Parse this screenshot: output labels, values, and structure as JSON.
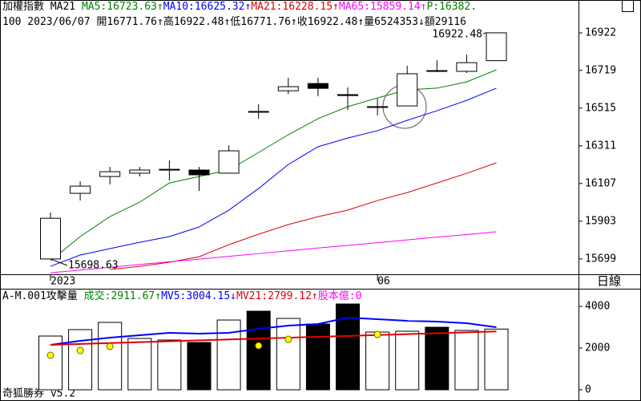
{
  "chart_data": [
    {
      "type": "candlestick",
      "header": [
        [
          {
            "text": "加權指數 MA21 ",
            "color": "#000000"
          },
          {
            "text": "MA5:16723.63↑",
            "color": "#008000"
          },
          {
            "text": "MA10:16625.32↑",
            "color": "#0000ff"
          },
          {
            "text": "MA21:16228.15↑",
            "color": "#e00000"
          },
          {
            "text": "MA65:15859.14↑",
            "color": "#ff00ff"
          },
          {
            "text": "P:16382.",
            "color": "#008000"
          }
        ],
        [
          {
            "text": "100 2023/06/07 開16771.76↑高16922.48↑低16771.76↑收16922.48↑量6524353↓額29116",
            "color": "#000000"
          }
        ]
      ],
      "categories": [
        "2023",
        null,
        null,
        null,
        null,
        null,
        null,
        null,
        null,
        null,
        null,
        "06",
        null,
        null,
        null,
        null
      ],
      "open": [
        15699,
        16054,
        16145,
        16163,
        16184,
        16180,
        16163,
        16497,
        16609,
        16648,
        16588,
        16523,
        16527,
        16718,
        16714,
        16771.76
      ],
      "high": [
        15950,
        16119,
        16197,
        16197,
        16232,
        16197,
        16314,
        16536,
        16679,
        16679,
        16627,
        16566,
        16744,
        16774,
        16805,
        16922.48
      ],
      "low": [
        15698.63,
        16015,
        16102,
        16145,
        16123,
        16067,
        16163,
        16458,
        16592,
        16579,
        16505,
        16475,
        16527,
        16709,
        16705,
        16771.76
      ],
      "close": [
        15919,
        16093,
        16171,
        16180,
        16184,
        16154,
        16284,
        16497,
        16631,
        16622,
        16583,
        16523,
        16701,
        16718,
        16761,
        16922.48
      ],
      "up_color": "#ffffff",
      "down_color": "#000000",
      "lines": [
        {
          "color": "#008000",
          "values": [
            15689,
            15820,
            15928,
            16006,
            16110,
            16145,
            16180,
            16275,
            16371,
            16458,
            16523,
            16570,
            16614,
            16623,
            16657,
            16722
          ]
        },
        {
          "color": "#0000ff",
          "values": [
            15659,
            15720,
            15755,
            15789,
            15820,
            15872,
            15963,
            16080,
            16210,
            16306,
            16353,
            16393,
            16449,
            16501,
            16557,
            16623
          ]
        },
        {
          "color": "#e00000",
          "values": [
            null,
            null,
            15642,
            15659,
            15681,
            15711,
            15776,
            15833,
            15885,
            15928,
            15963,
            16015,
            16058,
            16110,
            16162,
            16219
          ]
        },
        {
          "color": "#ff00ff",
          "values": [
            15624,
            15639,
            15654,
            15669,
            15684,
            15698,
            15713,
            15728,
            15743,
            15758,
            15772,
            15787,
            15802,
            15817,
            15831,
            15846
          ]
        }
      ],
      "annotations": [
        "16922.48",
        "15698.63"
      ],
      "ylim": [
        15616,
        17100
      ],
      "yticks": [
        16922,
        16719,
        16515,
        16311,
        16107,
        15903,
        15699
      ],
      "period_label": "日線"
    },
    {
      "type": "bar",
      "header": [
        [
          {
            "text": "A-M.001攻擊量 ",
            "color": "#000000"
          },
          {
            "text": "成交:2911.67↑",
            "color": "#008000"
          },
          {
            "text": "MV5:3004.15↓",
            "color": "#0000ff"
          },
          {
            "text": "MV21:2799.12↑",
            "color": "#e00000"
          },
          {
            "text": "股本億:0",
            "color": "#ff00ff"
          }
        ]
      ],
      "values": [
        2577,
        2885,
        3231,
        2462,
        2385,
        2269,
        3346,
        3769,
        3423,
        3154,
        4115,
        2769,
        2808,
        3000,
        2846,
        2911.67
      ],
      "colors": [
        "#ffffff",
        "#ffffff",
        "#ffffff",
        "#ffffff",
        "#ffffff",
        "#000000",
        "#ffffff",
        "#000000",
        "#ffffff",
        "#000000",
        "#000000",
        "#ffffff",
        "#ffffff",
        "#000000",
        "#ffffff",
        "#ffffff"
      ],
      "lines": [
        {
          "color": "#0000ff",
          "values": [
            2154,
            2346,
            2500,
            2615,
            2731,
            2692,
            2731,
            2923,
            3077,
            3154,
            3462,
            3385,
            3308,
            3269,
            3192,
            3000
          ]
        },
        {
          "color": "#e00000",
          "values": [
            2154,
            2197,
            2240,
            2283,
            2326,
            2369,
            2412,
            2455,
            2498,
            2541,
            2584,
            2627,
            2670,
            2713,
            2756,
            2799
          ]
        }
      ],
      "dots": {
        "color": "#ffff00",
        "values": [
          1654,
          1885,
          2077,
          null,
          null,
          null,
          null,
          2115,
          2423,
          null,
          null,
          2654,
          null,
          null,
          null,
          null
        ]
      },
      "ylim": [
        0,
        4770
      ],
      "yticks": [
        4000,
        2000,
        0
      ]
    }
  ],
  "footer": "奇狐勝券 v5.2"
}
